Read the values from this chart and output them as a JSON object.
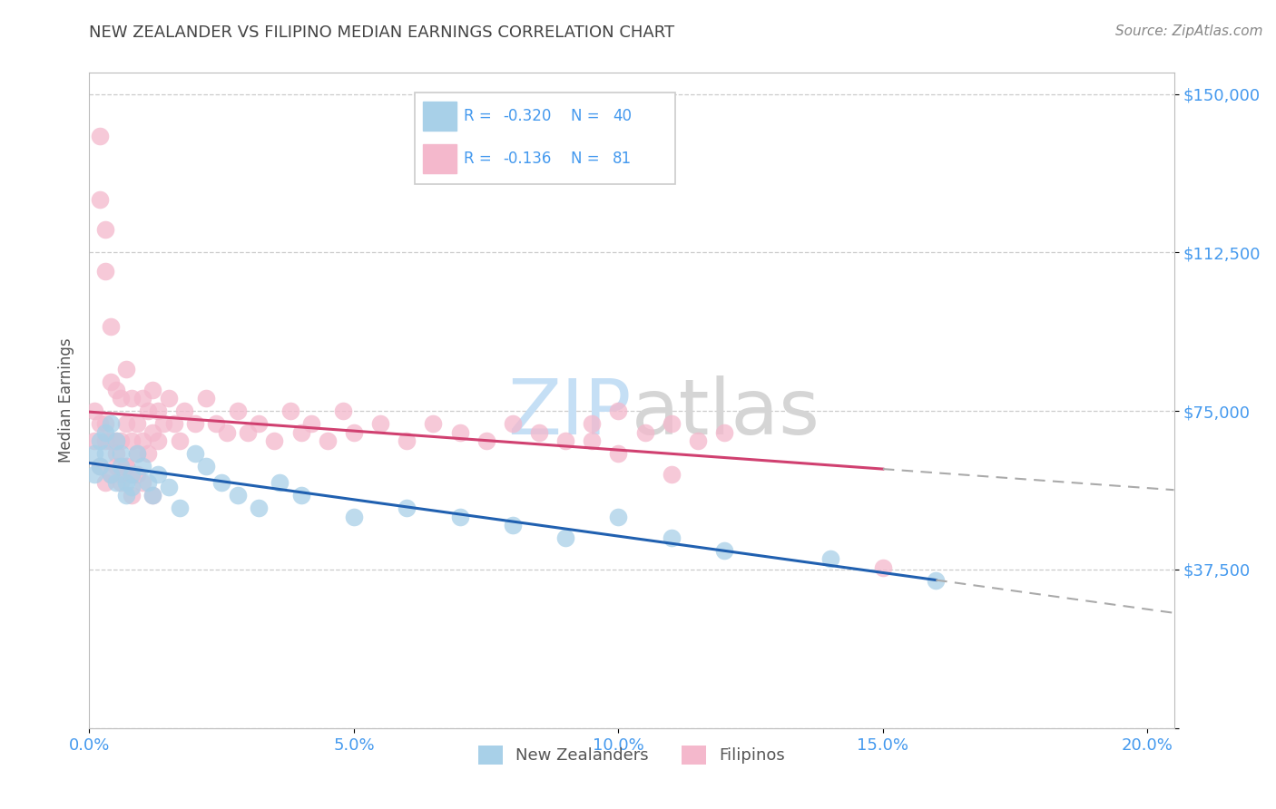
{
  "title": "NEW ZEALANDER VS FILIPINO MEDIAN EARNINGS CORRELATION CHART",
  "source": "Source: ZipAtlas.com",
  "ylabel": "Median Earnings",
  "xlim": [
    0.0,
    0.205
  ],
  "ylim": [
    0,
    155000
  ],
  "yticks": [
    0,
    37500,
    75000,
    112500,
    150000
  ],
  "ytick_labels": [
    "",
    "$37,500",
    "$75,000",
    "$112,500",
    "$150,000"
  ],
  "xticks": [
    0.0,
    0.05,
    0.1,
    0.15,
    0.2
  ],
  "xtick_labels": [
    "0.0%",
    "5.0%",
    "10.0%",
    "15.0%",
    "20.0%"
  ],
  "nz_color": "#a8d0e8",
  "fil_color": "#f4b8cc",
  "nz_line_color": "#2060b0",
  "fil_line_color": "#d04070",
  "label_color": "#4499ee",
  "grid_color": "#cccccc",
  "nz_R": -0.32,
  "nz_N": 40,
  "fil_R": -0.136,
  "fil_N": 81,
  "nz_points_x": [
    0.001,
    0.001,
    0.002,
    0.002,
    0.003,
    0.003,
    0.004,
    0.004,
    0.005,
    0.005,
    0.006,
    0.006,
    0.007,
    0.007,
    0.008,
    0.008,
    0.009,
    0.01,
    0.011,
    0.012,
    0.013,
    0.015,
    0.017,
    0.02,
    0.022,
    0.025,
    0.028,
    0.032,
    0.036,
    0.04,
    0.05,
    0.06,
    0.07,
    0.08,
    0.09,
    0.1,
    0.11,
    0.12,
    0.14,
    0.16
  ],
  "nz_points_y": [
    65000,
    60000,
    68000,
    62000,
    70000,
    65000,
    72000,
    60000,
    68000,
    58000,
    65000,
    62000,
    58000,
    55000,
    60000,
    57000,
    65000,
    62000,
    58000,
    55000,
    60000,
    57000,
    52000,
    65000,
    62000,
    58000,
    55000,
    52000,
    58000,
    55000,
    50000,
    52000,
    50000,
    48000,
    45000,
    50000,
    45000,
    42000,
    40000,
    35000
  ],
  "fil_points_x": [
    0.001,
    0.001,
    0.002,
    0.002,
    0.002,
    0.003,
    0.003,
    0.003,
    0.003,
    0.004,
    0.004,
    0.004,
    0.005,
    0.005,
    0.005,
    0.006,
    0.006,
    0.006,
    0.007,
    0.007,
    0.007,
    0.008,
    0.008,
    0.008,
    0.009,
    0.009,
    0.01,
    0.01,
    0.011,
    0.011,
    0.012,
    0.012,
    0.013,
    0.013,
    0.014,
    0.015,
    0.016,
    0.017,
    0.018,
    0.02,
    0.022,
    0.024,
    0.026,
    0.028,
    0.03,
    0.032,
    0.035,
    0.038,
    0.04,
    0.042,
    0.045,
    0.048,
    0.05,
    0.055,
    0.06,
    0.065,
    0.07,
    0.075,
    0.08,
    0.085,
    0.09,
    0.095,
    0.1,
    0.105,
    0.11,
    0.115,
    0.12,
    0.002,
    0.003,
    0.004,
    0.005,
    0.006,
    0.007,
    0.008,
    0.009,
    0.01,
    0.012,
    0.095,
    0.1,
    0.11,
    0.15
  ],
  "fil_points_y": [
    75000,
    68000,
    125000,
    140000,
    72000,
    118000,
    108000,
    72000,
    68000,
    95000,
    82000,
    68000,
    80000,
    68000,
    62000,
    78000,
    68000,
    60000,
    85000,
    72000,
    62000,
    78000,
    68000,
    60000,
    72000,
    65000,
    78000,
    68000,
    75000,
    65000,
    80000,
    70000,
    75000,
    68000,
    72000,
    78000,
    72000,
    68000,
    75000,
    72000,
    78000,
    72000,
    70000,
    75000,
    70000,
    72000,
    68000,
    75000,
    70000,
    72000,
    68000,
    75000,
    70000,
    72000,
    68000,
    72000,
    70000,
    68000,
    72000,
    70000,
    68000,
    72000,
    75000,
    70000,
    72000,
    68000,
    70000,
    62000,
    58000,
    60000,
    65000,
    58000,
    62000,
    55000,
    60000,
    58000,
    55000,
    68000,
    65000,
    60000,
    38000
  ],
  "watermark_zip_color": "#c5dff5",
  "watermark_atlas_color": "#d5d5d5"
}
